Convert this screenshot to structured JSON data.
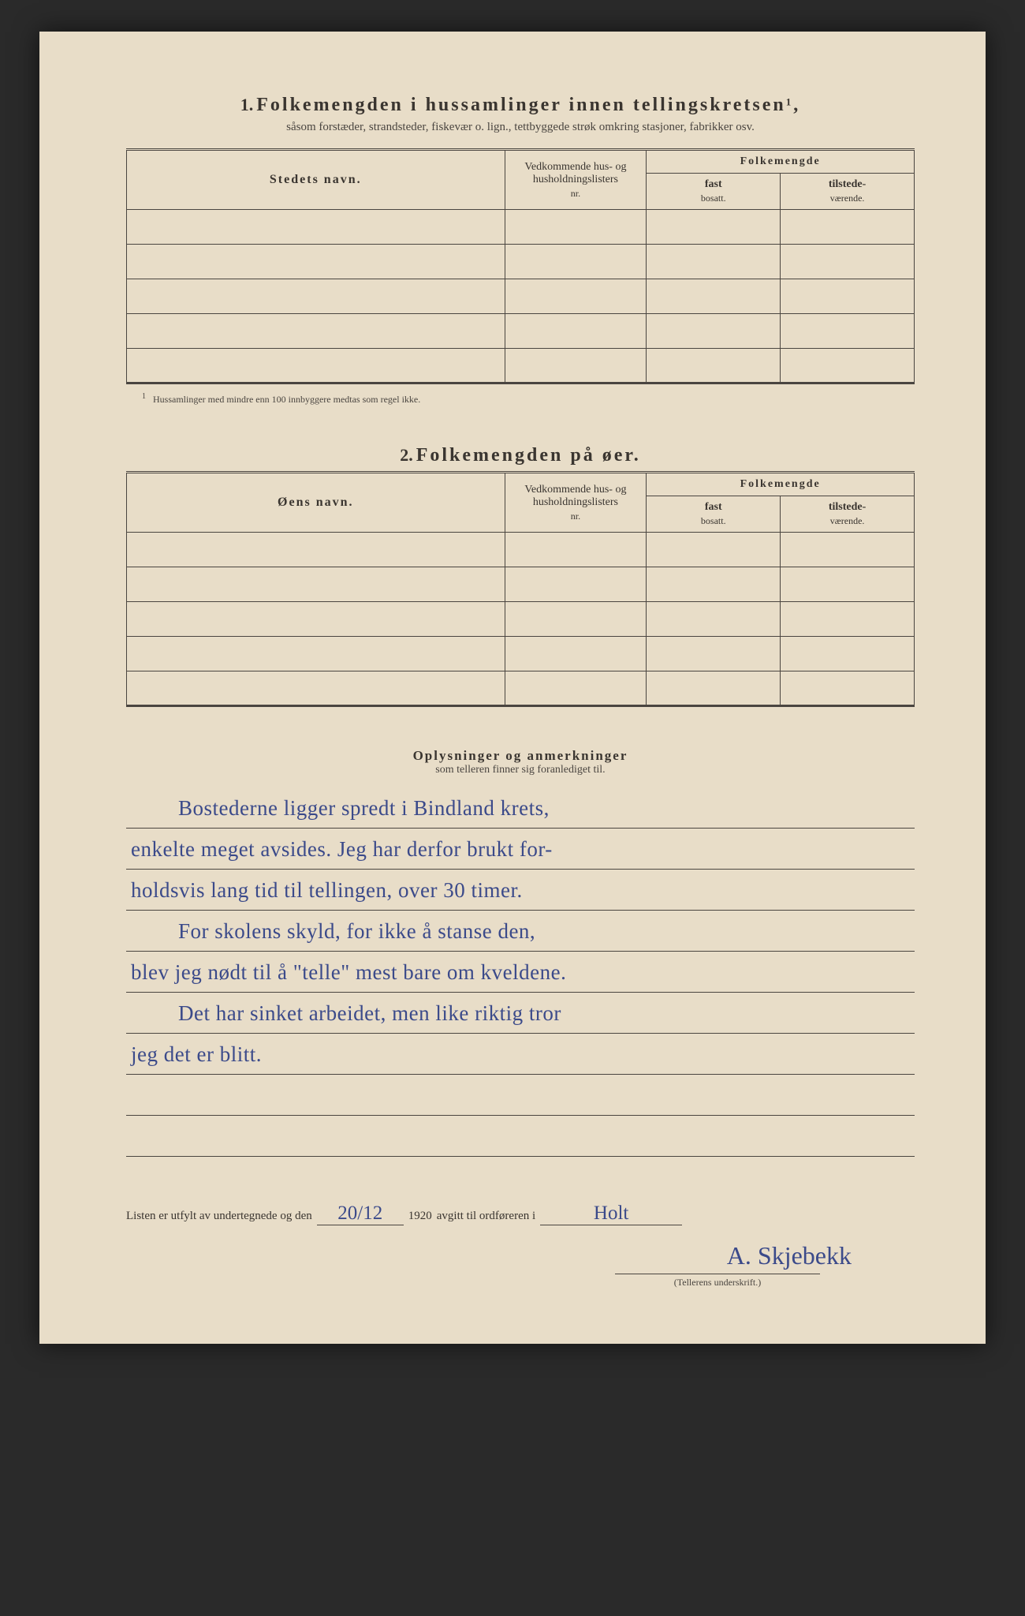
{
  "section1": {
    "number": "1.",
    "title": "Folkemengden i hussamlinger innen tellingskretsen",
    "title_sup": "1",
    "subtitle": "såsom forstæder, strandsteder, fiskevær o. lign., tettbyggede strøk omkring stasjoner, fabrikker osv.",
    "col_stedets": "Stedets navn.",
    "col_vedk": "Vedkommende hus- og husholdningslisters",
    "col_vedk_sub": "nr.",
    "col_folkem": "Folkemengde",
    "col_fast": "fast",
    "col_fast_sub": "bosatt.",
    "col_tilstede": "tilstede-",
    "col_tilstede_sub": "værende.",
    "row_count": 5,
    "footnote_num": "1",
    "footnote": "Hussamlinger med mindre enn 100 innbyggere medtas som regel ikke."
  },
  "section2": {
    "number": "2.",
    "title": "Folkemengden på øer.",
    "col_oens": "Øens navn.",
    "col_vedk": "Vedkommende hus- og husholdningslisters",
    "col_vedk_sub": "nr.",
    "col_folkem": "Folkemengde",
    "col_fast": "fast",
    "col_fast_sub": "bosatt.",
    "col_tilstede": "tilstede-",
    "col_tilstede_sub": "værende.",
    "row_count": 5
  },
  "remarks": {
    "title": "Oplysninger og anmerkninger",
    "subtitle": "som telleren finner sig foranlediget til.",
    "lines": [
      "Bostederne ligger spredt i Bindland krets,",
      "enkelte meget avsides. Jeg har derfor brukt for-",
      "holdsvis lang tid til tellingen, over 30 timer.",
      "For skolens skyld, for ikke å stanse den,",
      "blev jeg nødt til å \"telle\" mest bare om kveldene.",
      "Det har sinket arbeidet, men like riktig tror",
      "jeg det er blitt."
    ],
    "blank_lines": 2
  },
  "signoff": {
    "prefix": "Listen er utfylt av undertegnede og den",
    "date": "20/12",
    "year": "1920",
    "mid": "avgitt til ordføreren i",
    "place": "Holt",
    "signature": "A. Skjebekk",
    "caption": "(Tellerens underskrift.)"
  },
  "style": {
    "paper_bg": "#e8ddc8",
    "ink": "#3a3530",
    "rule": "#4a4540",
    "handwriting": "#3b4a8a"
  }
}
